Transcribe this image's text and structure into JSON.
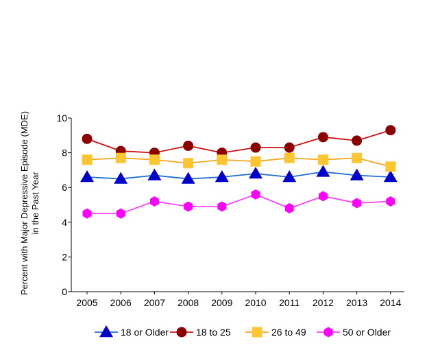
{
  "chart_data": {
    "type": "line",
    "title": "",
    "xlabel": "",
    "ylabel_lines": [
      "Percent with Major Depressive Episode (MDE)",
      "in the Past Year"
    ],
    "x": [
      "2005",
      "2006",
      "2007",
      "2008",
      "2009",
      "2010",
      "2011",
      "2012",
      "2013",
      "2014"
    ],
    "ylim": [
      0,
      10
    ],
    "yticks": [
      "0",
      "2",
      "4",
      "6",
      "8",
      "10"
    ],
    "grid": false,
    "legend_position": "bottom",
    "series": [
      {
        "name": "18 or Older",
        "color": "#1f6fd1",
        "marker_color": "#0000cc",
        "marker": "triangle",
        "values": [
          6.6,
          6.5,
          6.7,
          6.5,
          6.6,
          6.8,
          6.6,
          6.9,
          6.7,
          6.6
        ]
      },
      {
        "name": "18 to 25",
        "color": "#cc1111",
        "marker_color": "#8b0000",
        "marker": "circle",
        "values": [
          8.8,
          8.1,
          8.0,
          8.4,
          8.0,
          8.3,
          8.3,
          8.9,
          8.7,
          9.3
        ]
      },
      {
        "name": "26 to 49",
        "color": "#f5a623",
        "marker_color": "#fdc52f",
        "marker": "square",
        "values": [
          7.6,
          7.7,
          7.6,
          7.4,
          7.6,
          7.5,
          7.7,
          7.6,
          7.7,
          7.2
        ]
      },
      {
        "name": "50 or Older",
        "color": "#ff40ff",
        "marker_color": "#ff00ff",
        "marker": "hexagon",
        "values": [
          4.5,
          4.5,
          5.2,
          4.9,
          4.9,
          5.6,
          4.8,
          5.5,
          5.1,
          5.2
        ]
      }
    ]
  }
}
